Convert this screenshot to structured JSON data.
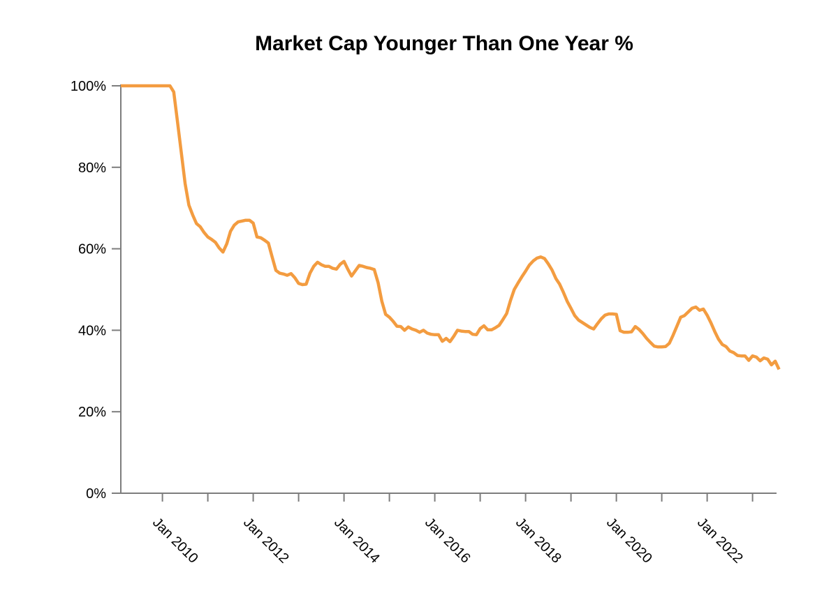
{
  "title": "Market Cap Younger Than One Year %",
  "colors": {
    "line": "#F39C40",
    "axis": "#7d7d7d",
    "text": "#000000",
    "background": "#ffffff"
  },
  "y_axis": {
    "tick_labels": [
      "100%",
      "80%",
      "60%",
      "40%",
      "20%",
      "0%"
    ],
    "tick_values": [
      100,
      80,
      60,
      40,
      20,
      0
    ]
  },
  "x_axis": {
    "tick_years": [
      2010,
      2011,
      2012,
      2013,
      2014,
      2015,
      2016,
      2017,
      2018,
      2019,
      2020,
      2021,
      2022,
      2023
    ],
    "tick_labels": [
      "Jan 2010",
      "Jan 2012",
      "Jan 2014",
      "Jan 2016",
      "Jan 2018",
      "Jan 2020",
      "Jan 2022"
    ]
  },
  "chart_data": {
    "type": "line",
    "title": "Market Cap Younger Than One Year %",
    "xlabel": "",
    "ylabel": "",
    "ylim": [
      0,
      100
    ],
    "grid": false,
    "legend": false,
    "x_start_month": "2009-02",
    "x_end_month": "2023-08",
    "frequency": "monthly",
    "x_tick_years": [
      2010,
      2011,
      2012,
      2013,
      2014,
      2015,
      2016,
      2017,
      2018,
      2019,
      2020,
      2021,
      2022,
      2023
    ],
    "x_labeled_years": [
      2010,
      2012,
      2014,
      2016,
      2018,
      2020,
      2022
    ],
    "y_ticks": [
      0,
      20,
      40,
      60,
      80,
      100
    ],
    "series": [
      {
        "name": "Market Cap Younger Than One Year %",
        "color": "#F39C40",
        "values": [
          100,
          100,
          100,
          100,
          100,
          100,
          100,
          100,
          100,
          100,
          100,
          100,
          100,
          100,
          98.5,
          91,
          83.5,
          76,
          70.7,
          68.3,
          66.2,
          65.4,
          64,
          62.9,
          62.3,
          61.6,
          60.2,
          59.2,
          61.2,
          64.3,
          65.8,
          66.6,
          66.8,
          67,
          67,
          66.3,
          62.9,
          62.7,
          62.1,
          61.4,
          58,
          54.7,
          54,
          53.8,
          53.5,
          53.9,
          52.9,
          51.5,
          51.2,
          51.3,
          54,
          55.7,
          56.7,
          56.1,
          55.7,
          55.7,
          55.2,
          55,
          56.2,
          56.9,
          55,
          53.3,
          54.6,
          55.9,
          55.7,
          55.4,
          55.2,
          54.9,
          51.7,
          47.1,
          43.9,
          43.2,
          42.2,
          41,
          40.9,
          40,
          40.8,
          40.3,
          40,
          39.5,
          40,
          39.3,
          39,
          38.9,
          38.9,
          37.3,
          38,
          37.2,
          38.5,
          40,
          39.8,
          39.7,
          39.7,
          39,
          38.9,
          40.4,
          41.1,
          40.1,
          40.1,
          40.6,
          41.2,
          42.6,
          44.1,
          47.3,
          50,
          51.6,
          53.1,
          54.5,
          56,
          57,
          57.7,
          58,
          57.6,
          56.3,
          54.8,
          52.7,
          51.3,
          49.3,
          47.1,
          45.4,
          43.6,
          42.5,
          41.9,
          41.3,
          40.7,
          40.3,
          41.6,
          42.8,
          43.7,
          44,
          44,
          43.9,
          39.9,
          39.5,
          39.5,
          39.6,
          40.9,
          40.2,
          39.2,
          38,
          37,
          36.1,
          35.9,
          35.9,
          36,
          36.8,
          38.8,
          41,
          43.2,
          43.6,
          44.5,
          45.4,
          45.7,
          44.9,
          45.2,
          43.7,
          41.8,
          39.7,
          37.8,
          36.5,
          36,
          34.9,
          34.5,
          33.8,
          33.7,
          33.7,
          32.6,
          33.7,
          33.4,
          32.5,
          33.2,
          32.9,
          31.5,
          32.4,
          30.4
        ]
      }
    ]
  }
}
